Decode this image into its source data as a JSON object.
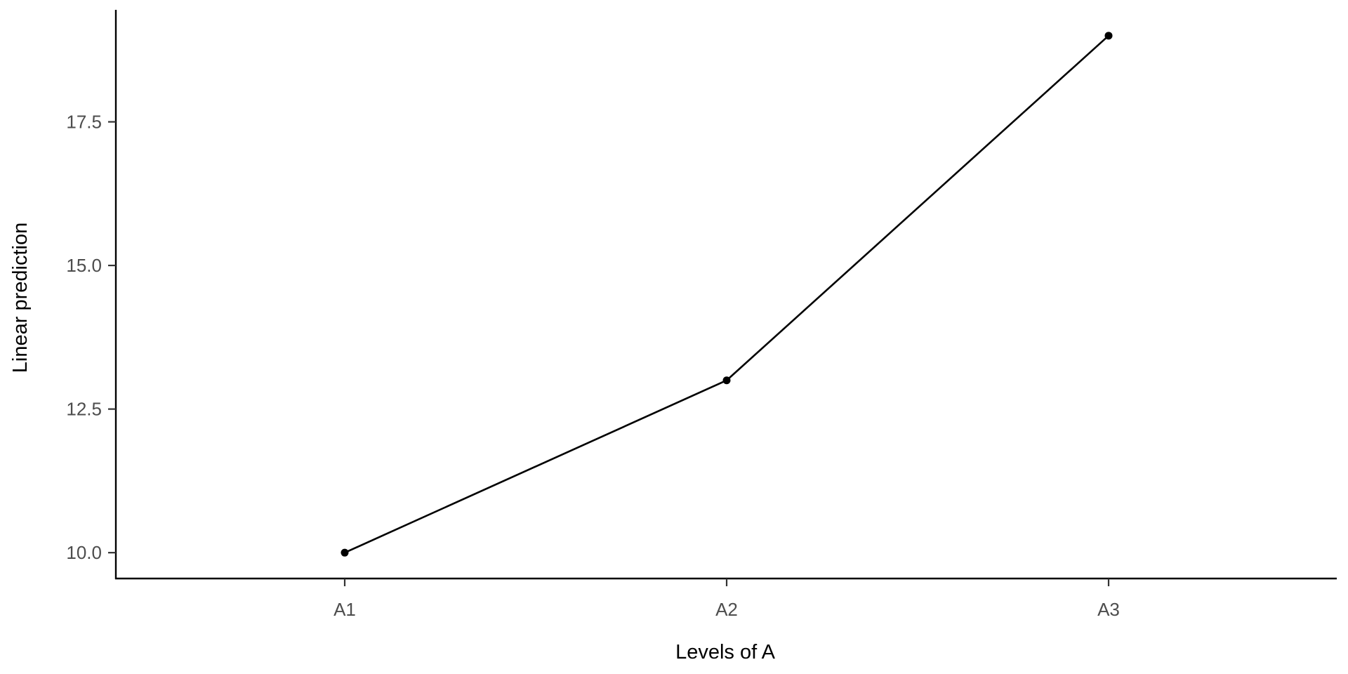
{
  "chart_data": {
    "type": "line",
    "title": "",
    "xlabel": "Levels of A",
    "ylabel": "Linear prediction",
    "categories": [
      "A1",
      "A2",
      "A3"
    ],
    "series": [
      {
        "values": [
          10.0,
          13.0,
          19.0
        ]
      }
    ],
    "yticks": [
      10.0,
      12.5,
      15.0,
      17.5
    ],
    "ytick_labels": [
      "10.0",
      "12.5",
      "15.0",
      "17.5"
    ],
    "ylim": [
      9.55,
      19.45
    ],
    "grid": false,
    "legend": "none",
    "colors": {
      "line": "#000000",
      "point": "#000000",
      "axis": "#000000",
      "tick_label": "#4d4d4d"
    }
  }
}
